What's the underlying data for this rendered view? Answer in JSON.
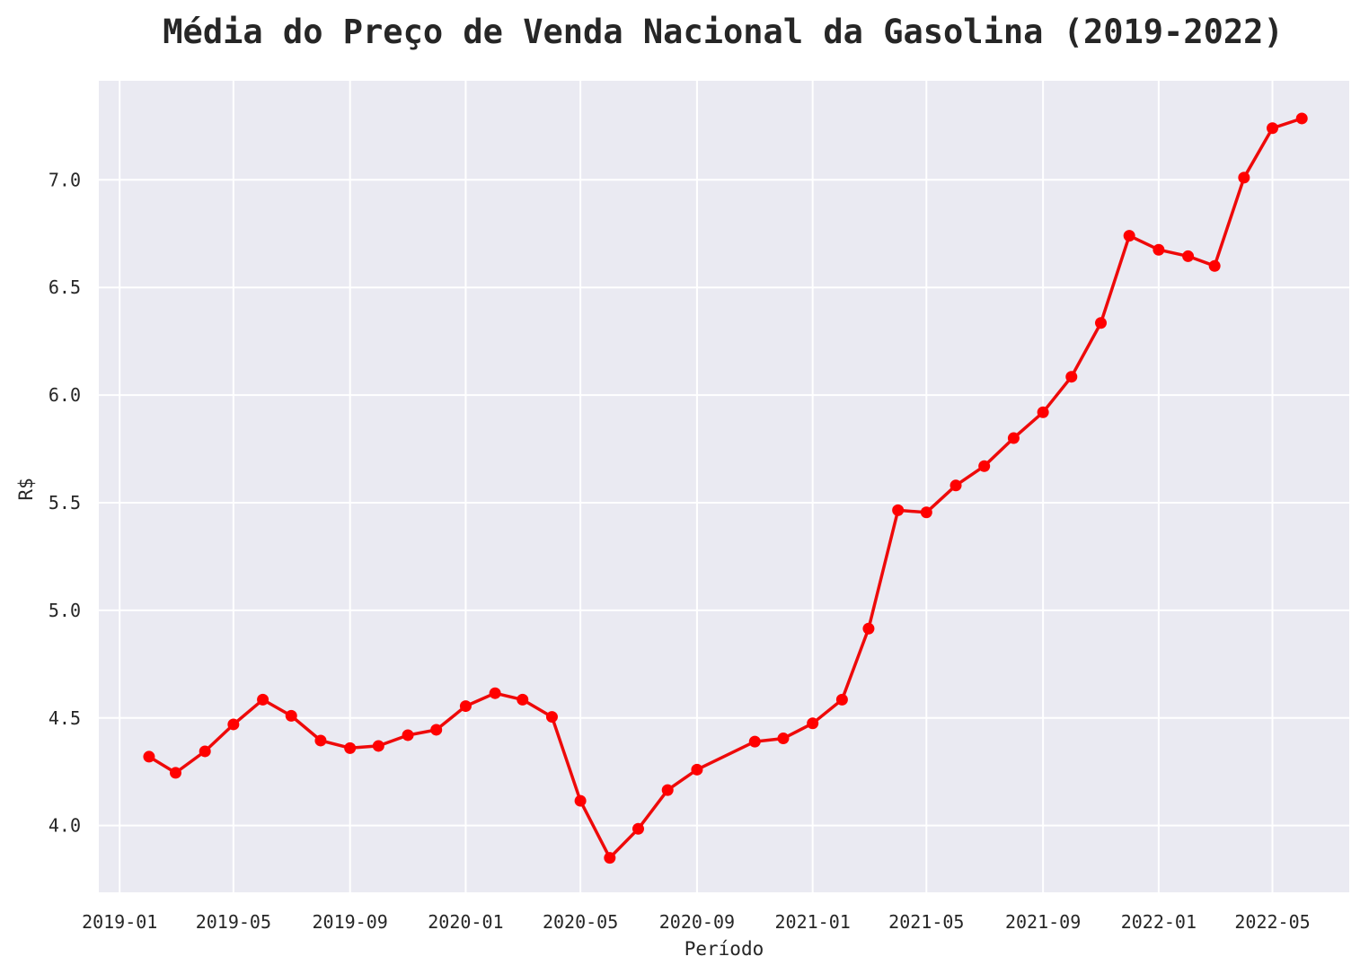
{
  "chart_data": {
    "type": "line",
    "title": "Média do Preço de Venda Nacional da Gasolina (2019-2022)",
    "xlabel": "Período",
    "ylabel": "R$",
    "x_tick_labels": [
      "2019-01",
      "2019-05",
      "2019-09",
      "2020-01",
      "2020-05",
      "2020-09",
      "2021-01",
      "2021-05",
      "2021-09",
      "2022-01",
      "2022-05"
    ],
    "y_tick_labels": [
      "4.0",
      "4.5",
      "5.0",
      "5.5",
      "6.0",
      "6.5",
      "7.0"
    ],
    "y_ticks": [
      4.0,
      4.5,
      5.0,
      5.5,
      6.0,
      6.5,
      7.0
    ],
    "xlim": [
      "2018-12-10",
      "2022-07-21"
    ],
    "ylim": [
      3.69,
      7.46
    ],
    "grid": true,
    "colors": {
      "background": "#EAEAF2",
      "grid": "#FFFFFF",
      "line": "#EE0A0A",
      "marker": "#FF0000"
    },
    "series": [
      {
        "x": [
          "2019-02-01",
          "2019-03-01",
          "2019-04-01",
          "2019-05-01",
          "2019-06-01",
          "2019-07-01",
          "2019-08-01",
          "2019-09-01",
          "2019-10-01",
          "2019-11-01",
          "2019-12-01",
          "2020-01-01",
          "2020-02-01",
          "2020-03-01",
          "2020-04-01",
          "2020-05-01",
          "2020-06-01",
          "2020-07-01",
          "2020-08-01",
          "2020-09-01",
          "2020-11-01",
          "2020-12-01",
          "2021-01-01",
          "2021-02-01",
          "2021-03-01",
          "2021-04-01",
          "2021-05-01",
          "2021-06-01",
          "2021-07-01",
          "2021-08-01",
          "2021-09-01",
          "2021-10-01",
          "2021-11-01",
          "2021-12-01",
          "2022-01-01",
          "2022-02-01",
          "2022-03-01",
          "2022-04-01",
          "2022-05-01",
          "2022-06-01"
        ],
        "values": [
          4.32,
          4.245,
          4.345,
          4.47,
          4.585,
          4.51,
          4.395,
          4.36,
          4.37,
          4.42,
          4.445,
          4.555,
          4.615,
          4.585,
          4.505,
          4.115,
          3.85,
          3.985,
          4.165,
          4.26,
          4.39,
          4.405,
          4.475,
          4.585,
          4.915,
          5.465,
          5.455,
          5.58,
          5.67,
          5.8,
          5.92,
          6.085,
          6.335,
          6.74,
          6.675,
          6.645,
          6.6,
          7.01,
          7.24,
          7.285
        ]
      }
    ]
  }
}
